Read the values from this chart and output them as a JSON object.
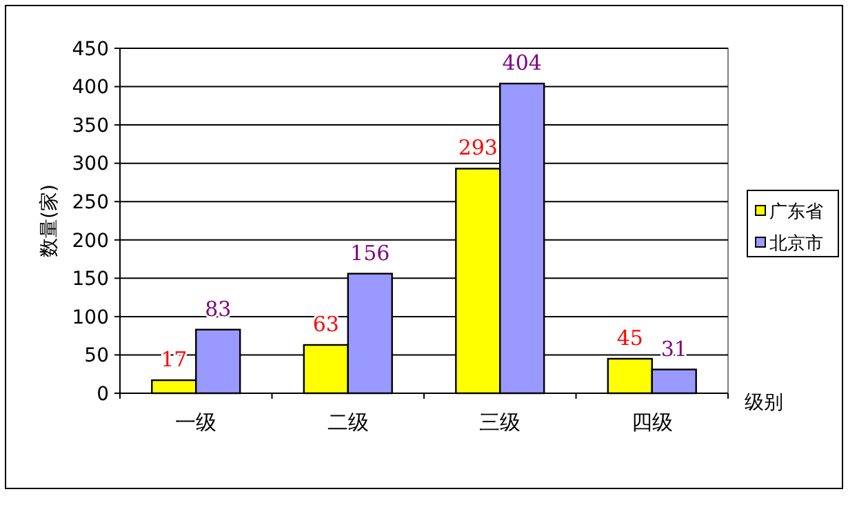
{
  "chart_data": {
    "type": "bar",
    "ylabel": "数量(家)",
    "xlabel": "级别",
    "categories": [
      "一级",
      "二级",
      "三级",
      "四级"
    ],
    "series": [
      {
        "name": "广东省",
        "color": "#ffff00",
        "values": [
          17,
          63,
          293,
          45
        ]
      },
      {
        "name": "北京市",
        "color": "#9999ff",
        "values": [
          83,
          156,
          404,
          31
        ]
      }
    ],
    "ylim": [
      0,
      450
    ],
    "yticks": [
      0,
      50,
      100,
      150,
      200,
      250,
      300,
      350,
      400,
      450
    ],
    "grid": "y",
    "legend": "right",
    "data_labels": true
  }
}
